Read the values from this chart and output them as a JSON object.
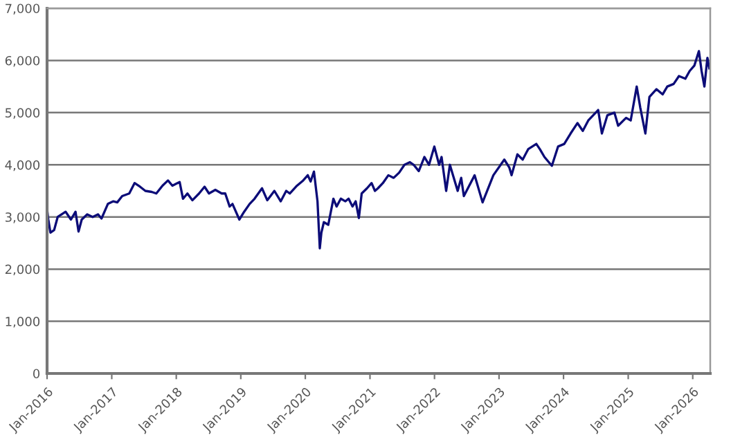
{
  "chart_data": {
    "type": "line",
    "x": [
      "2016-01-01",
      "2016-01-08",
      "2016-01-20",
      "2016-02-10",
      "2016-03-01",
      "2016-04-15",
      "2016-05-15",
      "2016-06-10",
      "2016-06-27",
      "2016-07-15",
      "2016-08-15",
      "2016-09-15",
      "2016-10-15",
      "2016-11-04",
      "2016-12-10",
      "2017-01-10",
      "2017-02-01",
      "2017-03-01",
      "2017-04-10",
      "2017-05-10",
      "2017-06-10",
      "2017-07-10",
      "2017-08-15",
      "2017-09-10",
      "2017-10-15",
      "2017-11-15",
      "2017-12-10",
      "2018-01-20",
      "2018-02-08",
      "2018-03-05",
      "2018-04-02",
      "2018-05-10",
      "2018-06-10",
      "2018-07-05",
      "2018-08-10",
      "2018-09-15",
      "2018-10-05",
      "2018-10-30",
      "2018-11-15",
      "2018-12-24",
      "2019-01-20",
      "2019-02-20",
      "2019-03-20",
      "2019-05-01",
      "2019-05-31",
      "2019-07-10",
      "2019-08-15",
      "2019-09-15",
      "2019-10-05",
      "2019-11-15",
      "2019-12-20",
      "2020-01-15",
      "2020-01-31",
      "2020-02-19",
      "2020-03-10",
      "2020-03-23",
      "2020-04-01",
      "2020-04-15",
      "2020-05-10",
      "2020-06-08",
      "2020-06-26",
      "2020-07-20",
      "2020-08-15",
      "2020-09-02",
      "2020-09-24",
      "2020-10-12",
      "2020-10-30",
      "2020-11-15",
      "2020-12-15",
      "2021-01-10",
      "2021-01-29",
      "2021-02-15",
      "2021-03-15",
      "2021-04-15",
      "2021-05-15",
      "2021-06-15",
      "2021-07-15",
      "2021-08-15",
      "2021-09-05",
      "2021-10-04",
      "2021-11-05",
      "2021-12-01",
      "2021-12-31",
      "2022-01-27",
      "2022-02-10",
      "2022-03-08",
      "2022-03-29",
      "2022-05-12",
      "2022-06-01",
      "2022-06-16",
      "2022-08-16",
      "2022-09-30",
      "2022-11-30",
      "2023-01-31",
      "2023-02-28",
      "2023-03-13",
      "2023-04-15",
      "2023-05-15",
      "2023-06-15",
      "2023-07-31",
      "2023-08-20",
      "2023-09-15",
      "2023-10-27",
      "2023-12-01",
      "2024-01-05",
      "2024-02-10",
      "2024-03-20",
      "2024-04-19",
      "2024-05-20",
      "2024-07-15",
      "2024-08-05",
      "2024-09-05",
      "2024-10-15",
      "2024-11-05",
      "2024-12-20",
      "2025-01-15",
      "2025-02-18",
      "2025-03-10",
      "2025-04-08",
      "2025-05-01",
      "2025-06-10",
      "2025-07-15",
      "2025-08-10",
      "2025-09-15",
      "2025-10-15",
      "2025-11-20",
      "2025-12-15",
      "2026-01-10",
      "2026-02-05",
      "2026-02-20",
      "2026-03-08",
      "2026-03-25",
      "2026-04-05"
    ],
    "series": [
      {
        "color": "#0c0c78",
        "values": [
          3150,
          2950,
          2700,
          2750,
          3000,
          3100,
          2950,
          3100,
          2720,
          2950,
          3050,
          3000,
          3050,
          2970,
          3250,
          3300,
          3280,
          3400,
          3450,
          3650,
          3580,
          3500,
          3480,
          3450,
          3600,
          3700,
          3600,
          3670,
          3350,
          3450,
          3320,
          3450,
          3580,
          3450,
          3520,
          3450,
          3450,
          3200,
          3250,
          2950,
          3100,
          3250,
          3350,
          3550,
          3320,
          3500,
          3300,
          3500,
          3450,
          3600,
          3700,
          3800,
          3680,
          3870,
          3300,
          2400,
          2700,
          2900,
          2850,
          3350,
          3200,
          3350,
          3300,
          3350,
          3200,
          3300,
          2980,
          3450,
          3550,
          3650,
          3500,
          3550,
          3650,
          3800,
          3750,
          3850,
          4000,
          4050,
          4000,
          3880,
          4150,
          4000,
          4350,
          4000,
          4150,
          3500,
          4000,
          3500,
          3750,
          3400,
          3800,
          3280,
          3800,
          4100,
          3950,
          3800,
          4200,
          4100,
          4300,
          4400,
          4300,
          4150,
          3980,
          4350,
          4400,
          4600,
          4800,
          4650,
          4850,
          5050,
          4600,
          4950,
          5000,
          4750,
          4900,
          4850,
          5500,
          5100,
          4600,
          5300,
          5450,
          5350,
          5500,
          5550,
          5700,
          5650,
          5800,
          5900,
          6180,
          5800,
          5500,
          6050,
          5850
        ]
      }
    ],
    "xlim": [
      "2016-01-01",
      "2026-04-10"
    ],
    "xticks": [
      {
        "value": "2016-01-01",
        "label": "Jan-2016"
      },
      {
        "value": "2017-01-01",
        "label": "Jan-2017"
      },
      {
        "value": "2018-01-01",
        "label": "Jan-2018"
      },
      {
        "value": "2019-01-01",
        "label": "Jan-2019"
      },
      {
        "value": "2020-01-01",
        "label": "Jan-2020"
      },
      {
        "value": "2021-01-01",
        "label": "Jan-2021"
      },
      {
        "value": "2022-01-01",
        "label": "Jan-2022"
      },
      {
        "value": "2023-01-01",
        "label": "Jan-2023"
      },
      {
        "value": "2024-01-01",
        "label": "Jan-2024"
      },
      {
        "value": "2025-01-01",
        "label": "Jan-2025"
      },
      {
        "value": "2026-01-01",
        "label": "Jan-2026"
      }
    ],
    "ylim": [
      0,
      7000
    ],
    "yticks": [
      {
        "value": 0,
        "label": "0"
      },
      {
        "value": 1000,
        "label": "1,000"
      },
      {
        "value": 2000,
        "label": "2,000"
      },
      {
        "value": 3000,
        "label": "3,000"
      },
      {
        "value": 4000,
        "label": "4,000"
      },
      {
        "value": 5000,
        "label": "5,000"
      },
      {
        "value": 6000,
        "label": "6,000"
      },
      {
        "value": 7000,
        "label": "7,000"
      }
    ],
    "grid": "y",
    "marker": "none",
    "line_style": "solid",
    "legend": false
  }
}
